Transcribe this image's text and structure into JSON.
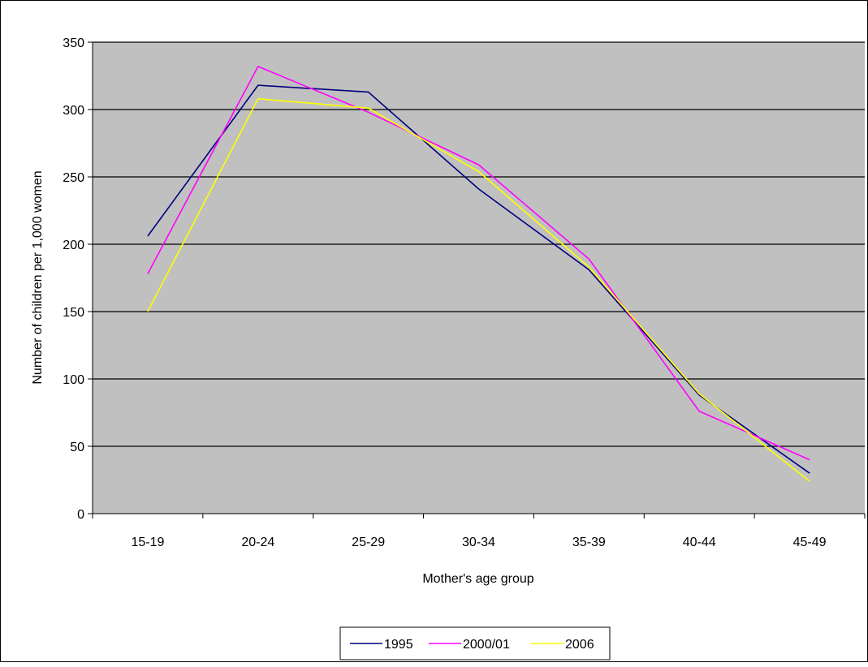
{
  "chart_data": {
    "type": "line",
    "title": "",
    "xlabel": "Mother's age group",
    "ylabel": "Number of children per 1,000 women",
    "categories": [
      "15-19",
      "20-24",
      "25-29",
      "30-34",
      "35-39",
      "40-44",
      "45-49"
    ],
    "ylim": [
      0,
      350
    ],
    "yticks": [
      "0",
      "50",
      "100",
      "150",
      "200",
      "250",
      "300",
      "350"
    ],
    "grid": true,
    "plot_background": "#C0C0C0",
    "legend_position": "bottom",
    "series": [
      {
        "name": "1995",
        "color": "#000080",
        "values": [
          206,
          318,
          313,
          241,
          181,
          88,
          30
        ]
      },
      {
        "name": "2000/01",
        "color": "#FF00FF",
        "values": [
          178,
          332,
          298,
          259,
          189,
          76,
          40
        ]
      },
      {
        "name": "2006",
        "color": "#FFFF00",
        "values": [
          150,
          308,
          301,
          254,
          183,
          89,
          24
        ]
      }
    ]
  }
}
